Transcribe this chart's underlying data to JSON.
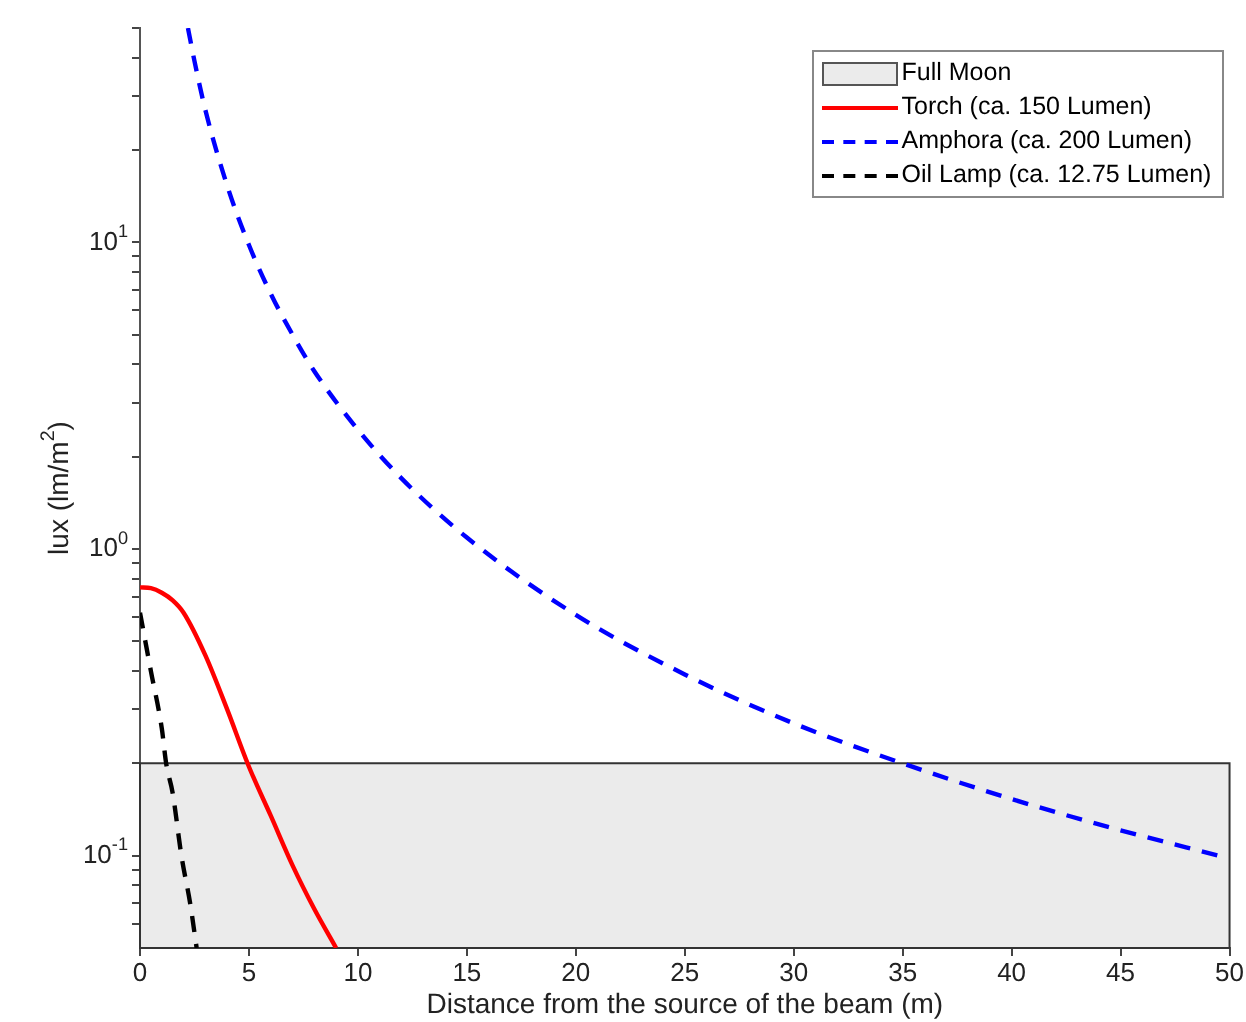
{
  "chart_data": {
    "type": "line",
    "xlabel": "Distance from the source of the beam (m)",
    "ylabel": "lux (lm/m$^{2}$)",
    "log": "y",
    "xlim": [
      0,
      50
    ],
    "xticks": [
      0,
      5,
      10,
      15,
      20,
      25,
      30,
      35,
      40,
      45,
      50
    ],
    "ylim": [
      0.05,
      50
    ],
    "yticks": [
      {
        "value": 0.06,
        "label": null
      },
      {
        "value": 0.07,
        "label": null
      },
      {
        "value": 0.08,
        "label": null
      },
      {
        "value": 0.09,
        "label": null
      },
      {
        "value": 0.1,
        "label": "10$^{-1}$"
      },
      {
        "value": 0.2,
        "label": null
      },
      {
        "value": 0.3,
        "label": null
      },
      {
        "value": 0.4,
        "label": null
      },
      {
        "value": 0.5,
        "label": null
      },
      {
        "value": 0.6,
        "label": null
      },
      {
        "value": 0.7,
        "label": null
      },
      {
        "value": 0.8,
        "label": null
      },
      {
        "value": 0.9,
        "label": null
      },
      {
        "value": 1,
        "label": "10$^{0}$"
      },
      {
        "value": 2,
        "label": null
      },
      {
        "value": 3,
        "label": null
      },
      {
        "value": 4,
        "label": null
      },
      {
        "value": 5,
        "label": null
      },
      {
        "value": 6,
        "label": null
      },
      {
        "value": 7,
        "label": null
      },
      {
        "value": 8,
        "label": null
      },
      {
        "value": 9,
        "label": null
      },
      {
        "value": 10,
        "label": "10$^{1}$"
      },
      {
        "value": 20,
        "label": null
      },
      {
        "value": 30,
        "label": null
      },
      {
        "value": 40,
        "label": null
      },
      {
        "value": 50,
        "label": null
      }
    ],
    "grid": false,
    "legend": "top right",
    "marker": "none",
    "bands": [
      {
        "axis": "y",
        "from": 0.05,
        "to": 0.2,
        "label": "Full Moon",
        "color": "#ebebeb"
      }
    ],
    "series": [
      {
        "name": "Torch (ca. 150 Lumen)",
        "color": "#ff0000",
        "line_style": "solid",
        "x": [
          0,
          0.5,
          1,
          1.5,
          2,
          3,
          4,
          5,
          6,
          7,
          8,
          9
        ],
        "values": [
          0.75,
          0.745,
          0.72,
          0.68,
          0.62,
          0.45,
          0.3,
          0.195,
          0.135,
          0.093,
          0.067,
          0.05
        ]
      },
      {
        "name": "Amphora (ca. 200 Lumen)",
        "color": "#0000ff",
        "line_style": "dashed",
        "x": [
          2.2,
          2.5,
          3,
          4,
          5,
          6,
          7,
          8,
          10,
          12,
          15,
          20,
          25,
          30,
          35,
          40,
          45,
          49.5
        ],
        "values": [
          50,
          39,
          27,
          15.3,
          9.8,
          6.8,
          5,
          3.8,
          2.45,
          1.7,
          1.09,
          0.61,
          0.39,
          0.27,
          0.2,
          0.153,
          0.121,
          0.1
        ]
      },
      {
        "name": "Oil Lamp (ca. 12.75 Lumen)",
        "color": "#000000",
        "line_style": "dashed",
        "x": [
          0,
          0.5,
          1,
          1.2,
          1.5,
          1.9,
          2.3,
          2.6
        ],
        "values": [
          0.62,
          0.4,
          0.26,
          0.2,
          0.16,
          0.1,
          0.07,
          0.05
        ]
      }
    ]
  }
}
